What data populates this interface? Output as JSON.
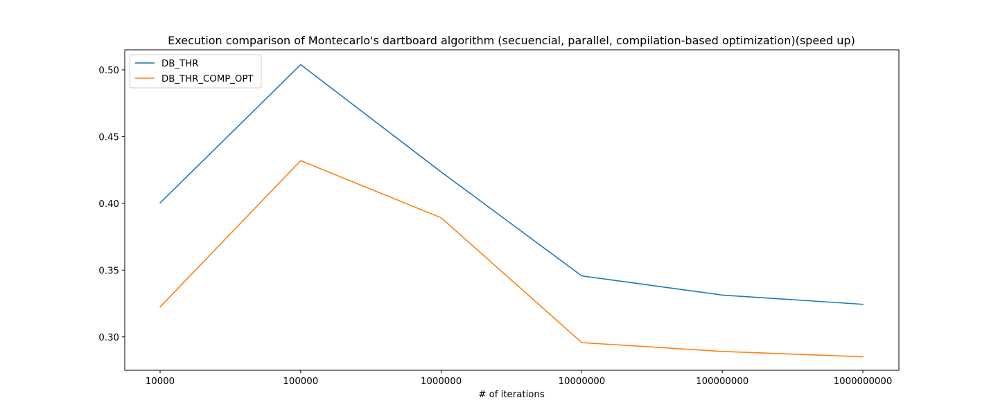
{
  "chart_data": {
    "type": "line",
    "title": "Execution comparison of Montecarlo's dartboard algorithm (secuencial, parallel, compilation-based optimization)(speed up)",
    "xlabel": "# of iterations",
    "ylabel": "",
    "categories": [
      "10000",
      "100000",
      "1000000",
      "10000000",
      "100000000",
      "1000000000"
    ],
    "ylim": [
      0.275,
      0.515
    ],
    "yticks": [
      "0.30",
      "0.35",
      "0.40",
      "0.45",
      "0.50"
    ],
    "grid": false,
    "legend_position": "top-left",
    "series": [
      {
        "name": "DB_THR",
        "color": "#1f77b4",
        "values": [
          0.4003,
          0.5039,
          0.4235,
          0.3457,
          0.3313,
          0.3244
        ]
      },
      {
        "name": "DB_THR_COMP_OPT",
        "color": "#ff7f0e",
        "values": [
          0.3224,
          0.432,
          0.3892,
          0.2957,
          0.2891,
          0.2851
        ]
      }
    ]
  }
}
